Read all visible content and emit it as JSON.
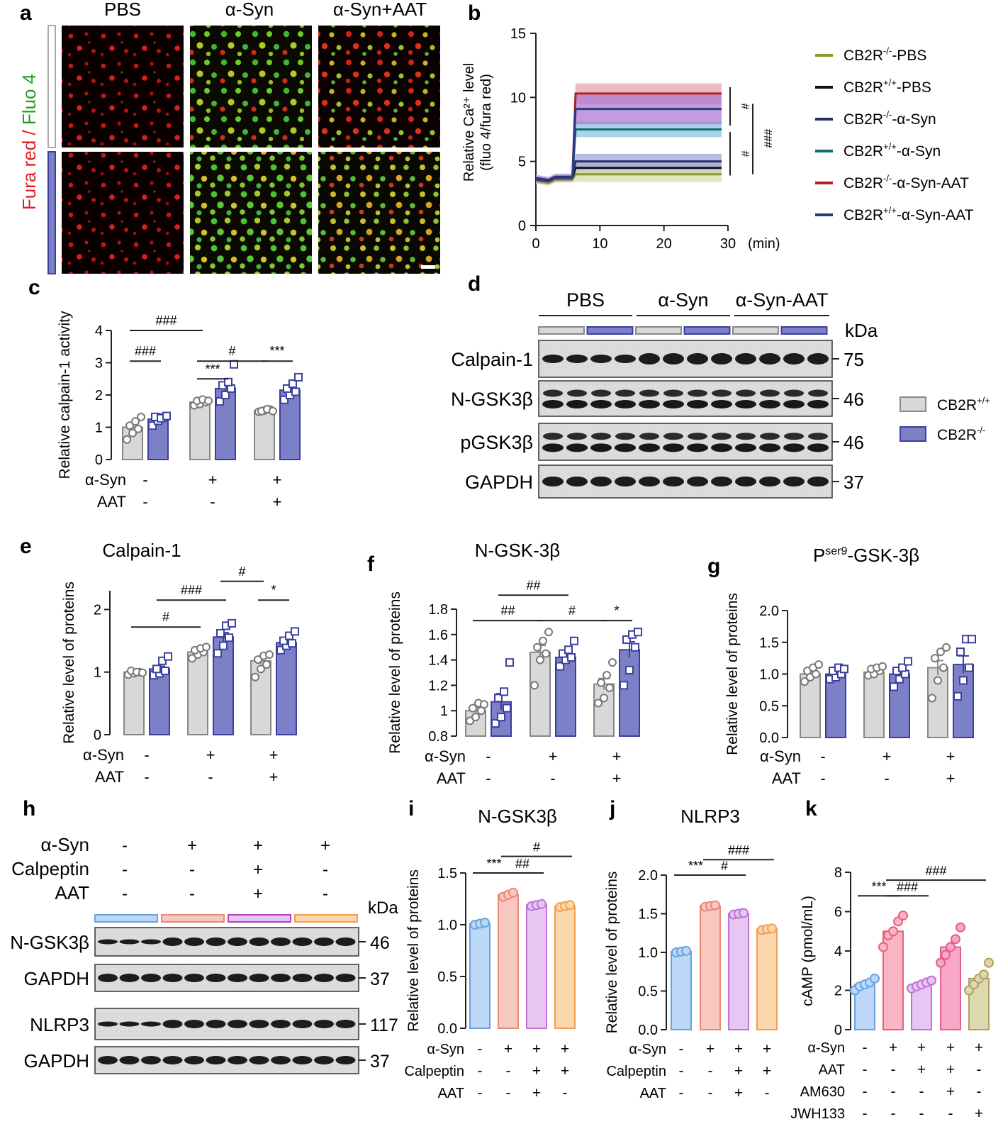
{
  "panel_labels": [
    "a",
    "b",
    "c",
    "d",
    "e",
    "f",
    "g",
    "h",
    "i",
    "j",
    "k"
  ],
  "colors": {
    "ctrl_fill": "#d8d8d8",
    "ctrl_edge": "#888888",
    "ko_fill": "#7c80c6",
    "ko_edge": "#3c3f9f",
    "i_blue": "#bcd8f6",
    "i_blue_edge": "#6aa2e0",
    "i_pink": "#f8c8c0",
    "i_pink_edge": "#e88878",
    "i_purple": "#e6c6f2",
    "i_purple_edge": "#c070d8",
    "i_orange": "#fbd7ad",
    "i_orange_edge": "#f0a050",
    "k_blue": "#bcd8f6",
    "k_pink": "#f9b5c4",
    "k_pink_edge": "#e8607c",
    "k_purple": "#e6c6f2",
    "k_rose": "#f7a8c8",
    "k_rose_edge": "#e0608e",
    "k_khaki": "#ded8b0",
    "k_khaki_edge": "#b0a060"
  },
  "panel_a": {
    "columns": [
      "PBS",
      "α-Syn",
      "α-Syn+AAT"
    ],
    "ylabel_red": "Fura red",
    "ylabel_sep": " / ",
    "ylabel_green": "Fluo 4"
  },
  "panel_d": {
    "groups": [
      "PBS",
      "α-Syn",
      "α-Syn-AAT"
    ],
    "kda_label": "kDa",
    "rows": [
      {
        "name": "Calpain-1",
        "kda": "75"
      },
      {
        "name": "N-GSK3β",
        "kda": "46"
      },
      {
        "name": "pGSK3β",
        "kda": "46"
      },
      {
        "name": "GAPDH",
        "kda": "37"
      }
    ],
    "legend": [
      {
        "label": "CB2R",
        "sup": "+/+"
      },
      {
        "label": "CB2R",
        "sup": "-/-"
      }
    ]
  },
  "panel_h": {
    "kda_label": "kDa",
    "conditions": [
      {
        "name": "α-Syn",
        "signs": [
          "-",
          "+",
          "+",
          "+"
        ]
      },
      {
        "name": "Calpeptin",
        "signs": [
          "-",
          "-",
          "+",
          "-"
        ]
      },
      {
        "name": "AAT",
        "signs": [
          "-",
          "-",
          "+",
          "-"
        ]
      }
    ],
    "rows": [
      {
        "name": "N-GSK3β",
        "kda": "46"
      },
      {
        "name": "GAPDH",
        "kda": "37"
      },
      {
        "name": "NLRP3",
        "kda": "117"
      },
      {
        "name": "GAPDH",
        "kda": "37"
      }
    ]
  },
  "chart_data": [
    {
      "panel": "b",
      "type": "line",
      "ylabel_line1": "Relative Ca²⁺ level",
      "ylabel_line2": "(fluo 4/fura red)",
      "xlabel": "(min)",
      "xlim": [
        0,
        30
      ],
      "ylim": [
        0,
        15
      ],
      "xticks": [
        0,
        10,
        20,
        30
      ],
      "yticks": [
        0,
        5,
        10,
        15
      ],
      "series": [
        {
          "name": "CB2R-/--PBS",
          "label": "CB2R",
          "sup": "-/-",
          "suffix": "-PBS",
          "color": "#8a9a2a",
          "band": "#d9dca0",
          "baseline": 3.5,
          "plateau": 4.0
        },
        {
          "name": "CB2R+/+-PBS",
          "label": "CB2R",
          "sup": "+/+",
          "suffix": "-PBS",
          "color": "#111111",
          "band": "#c9c9c9",
          "baseline": 3.6,
          "plateau": 4.5
        },
        {
          "name": "CB2R-/--α-Syn",
          "label": "CB2R",
          "sup": "-/-",
          "suffix": "-α-Syn",
          "color": "#2a2f6a",
          "band": "#9fa6d9",
          "baseline": 3.7,
          "plateau": 5.0
        },
        {
          "name": "CB2R+/+-α-Syn",
          "label": "CB2R",
          "sup": "+/+",
          "suffix": "-α-Syn",
          "color": "#0f6e6e",
          "band": "#8fc3e3",
          "baseline": 3.6,
          "plateau": 7.5
        },
        {
          "name": "CB2R-/--α-Syn-AAT",
          "label": "CB2R",
          "sup": "-/-",
          "suffix": "-α-Syn-AAT",
          "color": "#b42020",
          "band": "#e3a5ae",
          "baseline": 3.6,
          "plateau": 10.3
        },
        {
          "name": "CB2R+/+-α-Syn-AAT",
          "label": "CB2R",
          "sup": "+/+",
          "suffix": "-α-Syn-AAT",
          "color": "#2a3a8a",
          "band": "#b07ad0",
          "baseline": 3.6,
          "plateau": 9.1
        }
      ],
      "step_time": 6,
      "significance": [
        "#",
        "#",
        "###"
      ]
    },
    {
      "panel": "c",
      "type": "bar",
      "ylabel": "Relative calpain-1 activity",
      "ylim": [
        0,
        4
      ],
      "yticks": [
        0,
        1,
        2,
        3,
        4
      ],
      "conditions": [
        {
          "name": "α-Syn",
          "signs": [
            "-",
            "+",
            "+"
          ]
        },
        {
          "name": "AAT",
          "signs": [
            "-",
            "-",
            "+"
          ]
        }
      ],
      "series": [
        {
          "name": "CB2R+/+",
          "values": [
            1.0,
            1.78,
            1.52
          ],
          "points": [
            [
              0.62,
              0.82,
              0.95,
              1.05,
              1.18,
              1.32
            ],
            [
              1.68,
              1.72,
              1.78,
              1.82,
              1.86,
              1.82
            ],
            [
              1.48,
              1.52,
              1.55,
              1.5,
              1.56,
              1.5
            ]
          ]
        },
        {
          "name": "CB2R-/-",
          "values": [
            1.25,
            2.2,
            2.15
          ],
          "points": [
            [
              1.05,
              1.2,
              1.3,
              1.32,
              1.28,
              1.35
            ],
            [
              1.8,
              2.0,
              2.2,
              2.3,
              2.4,
              2.95
            ],
            [
              1.85,
              2.0,
              2.1,
              2.2,
              2.35,
              2.55
            ]
          ]
        }
      ],
      "brackets": [
        {
          "from": 0,
          "to": 2,
          "level": 4.0,
          "text": "###"
        },
        {
          "from": 0,
          "to": 1,
          "level": 3.05,
          "text": "###"
        },
        {
          "from": 2,
          "to": 4,
          "level": 3.05,
          "text": "#"
        },
        {
          "from": 4,
          "to": 5,
          "level": 3.05,
          "text": "***"
        },
        {
          "from": 2,
          "to": 3,
          "level": 2.5,
          "text": "***"
        }
      ]
    },
    {
      "panel": "e",
      "type": "bar",
      "title": "Calpain-1",
      "ylabel": "Relative level of proteins",
      "ylim": [
        0,
        2.3
      ],
      "yticks": [
        0,
        1,
        2
      ],
      "conditions": [
        {
          "name": "α-Syn",
          "signs": [
            "-",
            "+",
            "+"
          ]
        },
        {
          "name": "AAT",
          "signs": [
            "-",
            "-",
            "+"
          ]
        }
      ],
      "series": [
        {
          "name": "CB2R+/+",
          "values": [
            1.0,
            1.32,
            1.18
          ],
          "points": [
            [
              0.96,
              0.98,
              1.0,
              1.02,
              1.0,
              0.99
            ],
            [
              1.22,
              1.28,
              1.32,
              1.35,
              1.38,
              1.4
            ],
            [
              0.92,
              1.05,
              1.12,
              1.2,
              1.26,
              1.28
            ]
          ]
        },
        {
          "name": "CB2R-/-",
          "values": [
            1.05,
            1.56,
            1.47
          ],
          "points": [
            [
              0.95,
              0.98,
              1.02,
              1.05,
              1.18,
              1.25
            ],
            [
              1.3,
              1.42,
              1.55,
              1.62,
              1.74,
              1.78
            ],
            [
              1.35,
              1.42,
              1.46,
              1.5,
              1.58,
              1.65
            ]
          ]
        }
      ],
      "brackets": [
        {
          "from": 0,
          "to": 2,
          "level": 1.72,
          "text": "#"
        },
        {
          "from": 1,
          "to": 3,
          "level": 2.15,
          "text": "###"
        },
        {
          "from": 3,
          "to": 4,
          "level": 2.45,
          "text": "#"
        },
        {
          "from": 4,
          "to": 5,
          "level": 2.15,
          "text": "*"
        }
      ]
    },
    {
      "panel": "f",
      "type": "bar",
      "title": "N-GSK-3β",
      "ylabel": "Relative level of proteins",
      "ylim": [
        0.8,
        1.8
      ],
      "yticks": [
        0.8,
        1.0,
        1.2,
        1.4,
        1.6,
        1.8
      ],
      "conditions": [
        {
          "name": "α-Syn",
          "signs": [
            "-",
            "+",
            "+"
          ]
        },
        {
          "name": "AAT",
          "signs": [
            "-",
            "-",
            "+"
          ]
        }
      ],
      "series": [
        {
          "name": "CB2R+/+",
          "values": [
            1.0,
            1.46,
            1.21
          ],
          "points": [
            [
              0.92,
              0.95,
              1.0,
              1.02,
              1.06,
              1.05
            ],
            [
              1.2,
              1.4,
              1.45,
              1.5,
              1.55,
              1.62
            ],
            [
              1.06,
              1.1,
              1.18,
              1.22,
              1.28,
              1.38
            ]
          ]
        },
        {
          "name": "CB2R-/-",
          "values": [
            1.07,
            1.42,
            1.48
          ],
          "points": [
            [
              0.9,
              0.95,
              1.02,
              1.1,
              1.15,
              1.38
            ],
            [
              1.35,
              1.4,
              1.42,
              1.45,
              1.48,
              1.55
            ],
            [
              1.2,
              1.32,
              1.5,
              1.56,
              1.6,
              1.62
            ]
          ]
        }
      ],
      "brackets": [
        {
          "from": 0,
          "to": 2,
          "level": 1.71,
          "text": "##"
        },
        {
          "from": 1,
          "to": 3,
          "level": 1.91,
          "text": "##"
        },
        {
          "from": 2,
          "to": 4,
          "level": 1.71,
          "text": "#"
        },
        {
          "from": 4,
          "to": 5,
          "level": 1.71,
          "text": "*"
        }
      ]
    },
    {
      "panel": "g",
      "type": "bar",
      "title_base": "P",
      "title_sup": "ser9",
      "title_rest": "-GSK-3β",
      "ylabel": "Relative level of proteins",
      "ylim": [
        0,
        2.0
      ],
      "yticks": [
        0.0,
        0.5,
        1.0,
        1.5,
        2.0
      ],
      "tick_decimals": 1,
      "conditions": [
        {
          "name": "α-Syn",
          "signs": [
            "-",
            "+",
            "+"
          ]
        },
        {
          "name": "AAT",
          "signs": [
            "-",
            "-",
            "+"
          ]
        }
      ],
      "series": [
        {
          "name": "CB2R+/+",
          "values": [
            1.0,
            1.03,
            1.1
          ],
          "points": [
            [
              0.88,
              0.95,
              1.0,
              1.05,
              1.1,
              1.15
            ],
            [
              0.98,
              1.0,
              1.05,
              1.08,
              1.1,
              1.12
            ],
            [
              0.62,
              0.9,
              1.1,
              1.25,
              1.35,
              1.42
            ]
          ]
        },
        {
          "name": "CB2R-/-",
          "values": [
            1.0,
            1.0,
            1.15
          ],
          "points": [
            [
              0.92,
              0.95,
              1.0,
              1.05,
              1.1,
              1.08
            ],
            [
              0.8,
              0.92,
              1.0,
              1.05,
              1.1,
              1.2
            ],
            [
              0.65,
              0.9,
              1.1,
              1.35,
              1.55,
              1.55
            ]
          ]
        }
      ],
      "brackets": []
    },
    {
      "panel": "i",
      "type": "bar",
      "title": "N-GSK3β",
      "ylabel": "Relative level of proteins",
      "ylim": [
        0,
        1.5
      ],
      "yticks": [
        0.0,
        0.5,
        1.0,
        1.5
      ],
      "tick_decimals": 1,
      "conditions": [
        {
          "name": "α-Syn",
          "signs": [
            "-",
            "+",
            "+",
            "+"
          ]
        },
        {
          "name": "Calpeptin",
          "signs": [
            "-",
            "-",
            "+",
            "+"
          ]
        },
        {
          "name": "AAT",
          "signs": [
            "-",
            "-",
            "+",
            "-"
          ]
        }
      ],
      "values": [
        1.01,
        1.29,
        1.19,
        1.18
      ],
      "points": [
        [
          1.0,
          1.01,
          1.02
        ],
        [
          1.27,
          1.29,
          1.31
        ],
        [
          1.18,
          1.19,
          1.2
        ],
        [
          1.17,
          1.18,
          1.19
        ]
      ],
      "brackets": [
        {
          "from": 0,
          "to": 1,
          "level": 1.5,
          "text": "***"
        },
        {
          "from": 1,
          "to": 2,
          "level": 1.5,
          "text": "##"
        },
        {
          "from": 1,
          "to": 3,
          "level": 1.66,
          "text": "#"
        }
      ]
    },
    {
      "panel": "j",
      "type": "bar",
      "title": "NLRP3",
      "ylabel": "Relative level of proteins",
      "ylim": [
        0,
        2.0
      ],
      "yticks": [
        0.0,
        0.5,
        1.0,
        1.5,
        2.0
      ],
      "tick_decimals": 1,
      "conditions": [
        {
          "name": "α-Syn",
          "signs": [
            "-",
            "+",
            "+",
            "+"
          ]
        },
        {
          "name": "Calpeptin",
          "signs": [
            "-",
            "-",
            "+",
            "+"
          ]
        },
        {
          "name": "AAT",
          "signs": [
            "-",
            "-",
            "+",
            "-"
          ]
        }
      ],
      "values": [
        1.01,
        1.6,
        1.5,
        1.3
      ],
      "points": [
        [
          1.0,
          1.01,
          1.02
        ],
        [
          1.59,
          1.6,
          1.61
        ],
        [
          1.49,
          1.5,
          1.51
        ],
        [
          1.29,
          1.3,
          1.31
        ]
      ],
      "brackets": [
        {
          "from": 0,
          "to": 1,
          "level": 2.0,
          "text": "***"
        },
        {
          "from": 1,
          "to": 2,
          "level": 2.0,
          "text": "#"
        },
        {
          "from": 1,
          "to": 3,
          "level": 2.2,
          "text": "###"
        }
      ]
    },
    {
      "panel": "k",
      "type": "bar",
      "ylabel": "cAMP (pmol/mL)",
      "ylim": [
        0,
        8
      ],
      "yticks": [
        0,
        2,
        4,
        6,
        8
      ],
      "conditions": [
        {
          "name": "α-Syn",
          "signs": [
            "-",
            "+",
            "+",
            "+",
            "+"
          ]
        },
        {
          "name": "AAT",
          "signs": [
            "-",
            "-",
            "+",
            "+",
            "-"
          ]
        },
        {
          "name": "AM630",
          "signs": [
            "-",
            "-",
            "-",
            "+",
            "-"
          ]
        },
        {
          "name": "JWH133",
          "signs": [
            "-",
            "-",
            "-",
            "-",
            "+"
          ]
        }
      ],
      "values": [
        2.3,
        5.0,
        2.3,
        4.2,
        2.6
      ],
      "points": [
        [
          2.0,
          2.2,
          2.3,
          2.4,
          2.6
        ],
        [
          4.2,
          4.8,
          5.0,
          5.5,
          5.8
        ],
        [
          2.1,
          2.2,
          2.3,
          2.4,
          2.5
        ],
        [
          3.4,
          3.8,
          4.2,
          4.6,
          5.2
        ],
        [
          2.0,
          2.3,
          2.6,
          2.8,
          3.4
        ]
      ],
      "brackets": [
        {
          "from": 0,
          "to": 1,
          "level": 6.8,
          "text": "***"
        },
        {
          "from": 1,
          "to": 2,
          "level": 6.8,
          "text": "###"
        },
        {
          "from": 1,
          "to": 4,
          "level": 7.6,
          "text": "###"
        }
      ]
    }
  ]
}
